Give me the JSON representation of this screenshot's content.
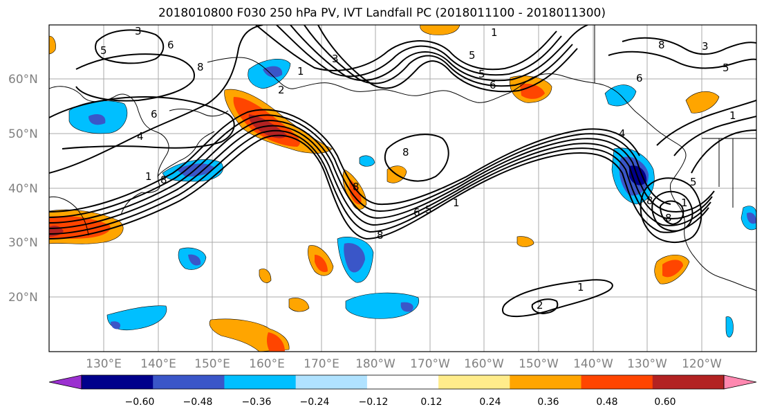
{
  "title": "2018010800 F030 250 hPa PV, IVT Landfall PC (2018011100 - 2018011300)",
  "lat_labels": [
    "60°N",
    "50°N",
    "40°N",
    "30°N",
    "20°N"
  ],
  "lon_labels": [
    "130°E",
    "140°E",
    "150°E",
    "160°E",
    "170°E",
    "180°W",
    "170°W",
    "160°W",
    "150°W",
    "140°W",
    "130°W",
    "120°W"
  ],
  "colorbar": {
    "ticks": [
      "−0.60",
      "−0.48",
      "−0.36",
      "−0.24",
      "−0.12",
      "0.12",
      "0.24",
      "0.36",
      "0.48",
      "0.60"
    ],
    "colors": [
      "#9b30d0",
      "#00008b",
      "#3a56c8",
      "#00bfff",
      "#b0e2ff",
      "#ffffff",
      "#ffec8b",
      "#ffa500",
      "#ff4500",
      "#b22222",
      "#ff88b0"
    ]
  },
  "contour_labels": [
    "3",
    "5",
    "6",
    "8",
    "1",
    "2",
    "3",
    "5",
    "1",
    "5",
    "6",
    "8",
    "6",
    "4",
    "1",
    "8",
    "8",
    "1",
    "6",
    "5",
    "8",
    "8",
    "1",
    "5",
    "4",
    "6",
    "5",
    "3",
    "8",
    "8",
    "1",
    "2",
    "1"
  ]
}
